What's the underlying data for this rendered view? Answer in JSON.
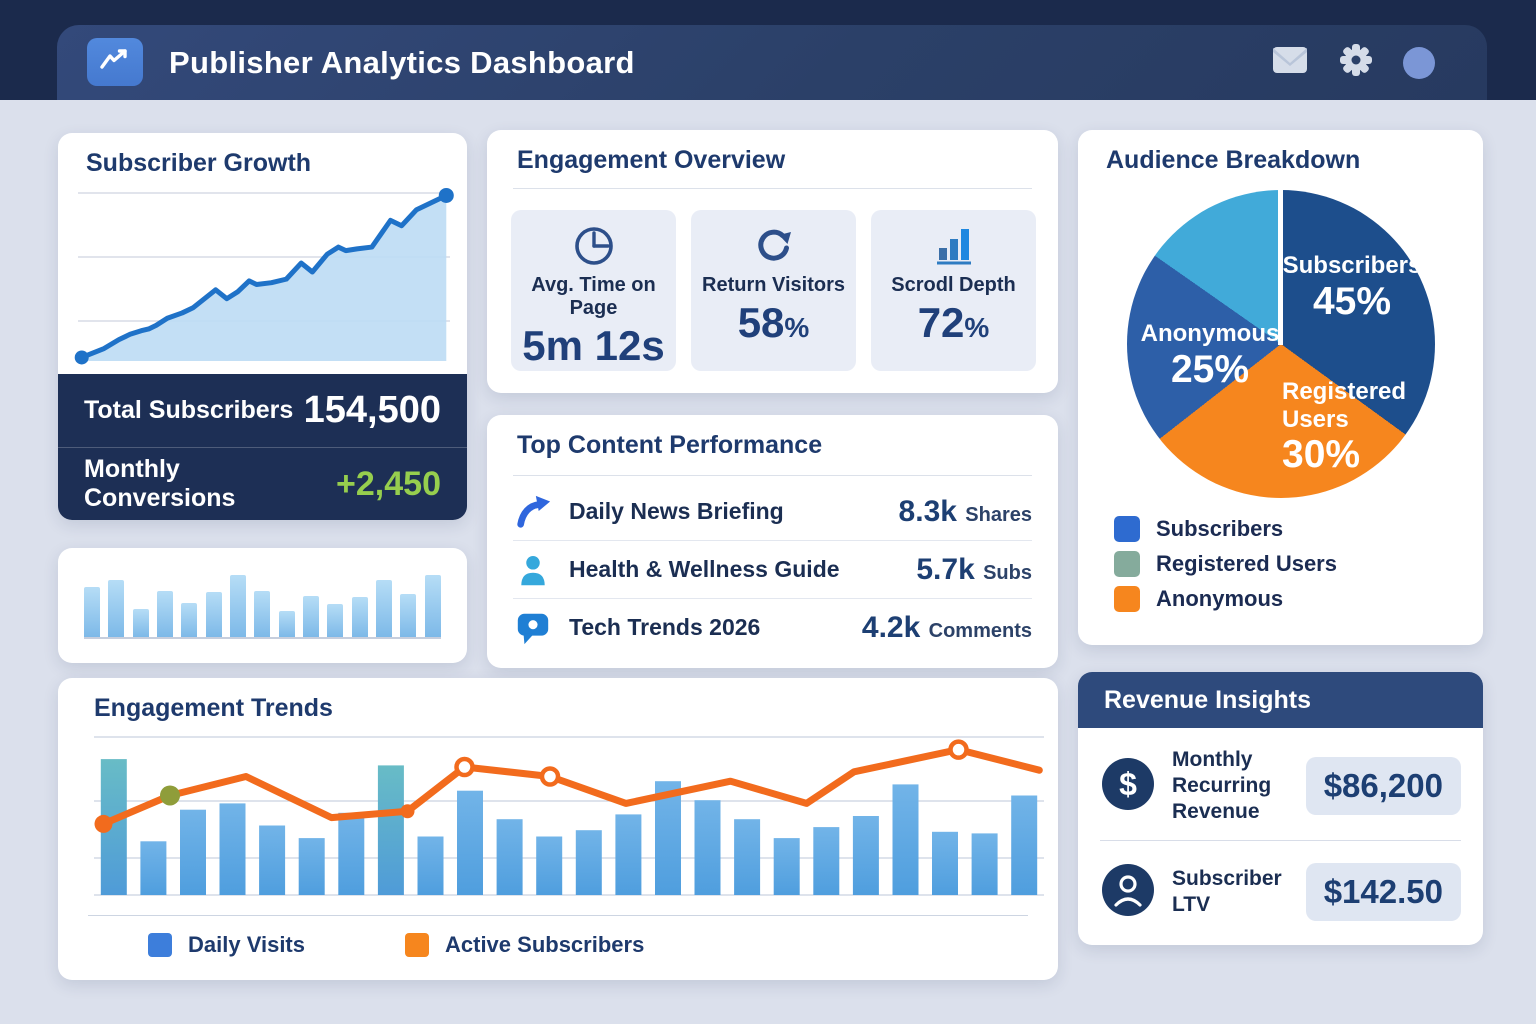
{
  "header": {
    "title": "Publisher Analytics Dashboard",
    "logo_icon": "trend-line",
    "actions": [
      "mail",
      "settings",
      "profile"
    ]
  },
  "subscriber_growth": {
    "title": "Subscriber Growth",
    "stats": [
      {
        "label": "Total Subscribers",
        "value": "154,500",
        "value_color": "#ffffff"
      },
      {
        "label": "Monthly Conversions",
        "value": "+2,450",
        "value_color": "#96ce4e"
      }
    ]
  },
  "engagement_overview": {
    "title": "Engagement Overview",
    "metrics": [
      {
        "icon": "clock-icon",
        "label": "Avg. Time on Page",
        "value": "5m 12s",
        "suffix": ""
      },
      {
        "icon": "refresh-icon",
        "label": "Return Visitors",
        "value": "58",
        "suffix": "%"
      },
      {
        "icon": "bar-steps-icon",
        "label": "Scrodl Depth",
        "value": "72",
        "suffix": "%"
      }
    ]
  },
  "top_content": {
    "title": "Top Content Performance",
    "rows": [
      {
        "icon": "share-arrow-icon",
        "title": "Daily News Briefing",
        "value": "8.3k",
        "unit": "Shares"
      },
      {
        "icon": "person-icon",
        "title": "Health & Wellness Guide",
        "value": "5.7k",
        "unit": "Subs"
      },
      {
        "icon": "chat-bubble-icon",
        "title": "Tech Trends 2026",
        "value": "4.2k",
        "unit": "Comments"
      }
    ]
  },
  "audience_breakdown": {
    "title": "Audience Breakdown",
    "legend": [
      {
        "label": "Subscribers",
        "color": "#2e6bd0"
      },
      {
        "label": "Registered Users",
        "color": "#85ab9c"
      },
      {
        "label": "Anonymous",
        "color": "#f6861e"
      }
    ]
  },
  "engagement_trends": {
    "title": "Engagement Trends",
    "legend": [
      {
        "label": "Daily Visits",
        "color": "#3d7edb"
      },
      {
        "label": "Active Subscribers",
        "color": "#f6861e"
      }
    ]
  },
  "revenue_insights": {
    "title": "Revenue Insights",
    "rows": [
      {
        "icon": "dollar-circle-icon",
        "label": "Monthly Recurring Revenue",
        "value": "$86,200"
      },
      {
        "icon": "user-circle-icon",
        "label": "Subscriber LTV",
        "value": "$142.50"
      }
    ]
  },
  "chart_data": [
    {
      "id": "subscriber-growth-area",
      "type": "area",
      "title": "Subscriber Growth",
      "x": [
        0.01,
        0.07,
        0.11,
        0.14,
        0.17,
        0.19,
        0.21,
        0.24,
        0.28,
        0.31,
        0.37,
        0.4,
        0.43,
        0.46,
        0.48,
        0.52,
        0.56,
        0.6,
        0.63,
        0.67,
        0.7,
        0.72,
        0.75,
        0.79,
        0.84,
        0.87,
        0.91,
        0.95,
        0.99
      ],
      "values": [
        0.02,
        0.07,
        0.12,
        0.15,
        0.17,
        0.18,
        0.2,
        0.24,
        0.27,
        0.3,
        0.4,
        0.35,
        0.39,
        0.45,
        0.43,
        0.44,
        0.46,
        0.55,
        0.5,
        0.6,
        0.64,
        0.62,
        0.63,
        0.64,
        0.79,
        0.76,
        0.85,
        0.89,
        0.93
      ],
      "ylim": [
        0,
        1
      ],
      "grid": true,
      "line_color": "#1f72c8",
      "fill_color": "#bcdcf4",
      "endpoint_dots": true
    },
    {
      "id": "traffic-sparkline",
      "type": "bar",
      "values": [
        0.72,
        0.82,
        0.4,
        0.66,
        0.5,
        0.65,
        0.9,
        0.67,
        0.38,
        0.6,
        0.48,
        0.58,
        0.82,
        0.62,
        0.9
      ],
      "bar_color": "#7db9e8",
      "grid": false
    },
    {
      "id": "audience-pie",
      "type": "pie",
      "title": "Audience Breakdown",
      "slices": [
        {
          "label": "Subscribers",
          "pct": "45%",
          "value": 45,
          "sweep_deg": 126,
          "color": "#1d4e8c"
        },
        {
          "label": "Registered Users",
          "pct": "30%",
          "value": 30,
          "sweep_deg": 106,
          "color": "#f6861e"
        },
        {
          "label": "Anonymous",
          "pct": "25%",
          "value": 25,
          "sweep_deg": 73,
          "color": "#2d5fa8"
        },
        {
          "label": "",
          "pct": "",
          "value": null,
          "sweep_deg": 55,
          "color": "#41aad9"
        }
      ],
      "legend_position": "bottom-left"
    },
    {
      "id": "engagement-trends-combo",
      "type": "bar",
      "title": "Engagement Trends",
      "grid": true,
      "legend_position": "bottom",
      "series": [
        {
          "name": "Daily Visits",
          "kind": "bar",
          "color": "#4f9ede",
          "highlight_color": "#68bcc6",
          "highlight_indices": [
            0,
            7
          ],
          "values": [
            0.86,
            0.34,
            0.54,
            0.58,
            0.44,
            0.36,
            0.52,
            0.82,
            0.37,
            0.66,
            0.48,
            0.37,
            0.41,
            0.51,
            0.72,
            0.6,
            0.48,
            0.36,
            0.43,
            0.5,
            0.7,
            0.4,
            0.39,
            0.63
          ]
        },
        {
          "name": "Active Subscribers",
          "kind": "line",
          "color": "#f26b1d",
          "points": [
            [
              0.01,
              0.45
            ],
            [
              0.08,
              0.63
            ],
            [
              0.16,
              0.75
            ],
            [
              0.25,
              0.49
            ],
            [
              0.33,
              0.53
            ],
            [
              0.39,
              0.81
            ],
            [
              0.48,
              0.75
            ],
            [
              0.56,
              0.58
            ],
            [
              0.67,
              0.72
            ],
            [
              0.75,
              0.58
            ],
            [
              0.8,
              0.78
            ],
            [
              0.91,
              0.92
            ],
            [
              0.995,
              0.79
            ]
          ],
          "markers": [
            {
              "point": 0,
              "style": "solid",
              "color": "#f26b1d",
              "r": 9
            },
            {
              "point": 1,
              "style": "solid",
              "color": "#8f9d3a",
              "r": 10
            },
            {
              "point": 4,
              "style": "solid",
              "color": "#f26b1d",
              "r": 7
            },
            {
              "point": 5,
              "style": "open",
              "color": "#f26b1d",
              "r": 8
            },
            {
              "point": 6,
              "style": "open",
              "color": "#f26b1d",
              "r": 8
            },
            {
              "point": 11,
              "style": "open",
              "color": "#f26b1d",
              "r": 8
            }
          ]
        }
      ]
    }
  ]
}
